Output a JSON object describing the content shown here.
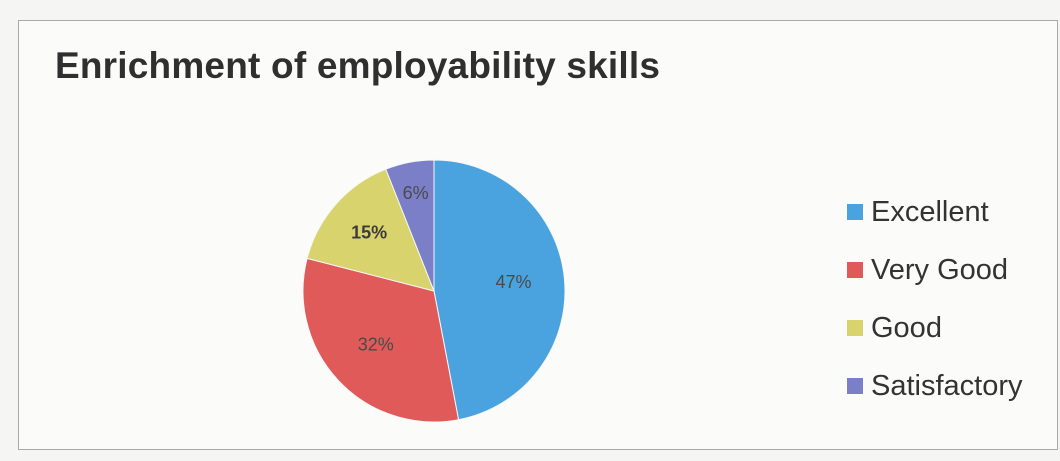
{
  "chart_data": {
    "type": "pie",
    "title": "Enrichment of employability skills",
    "categories": [
      "Excellent",
      "Very Good",
      "Good",
      "Satisfactory"
    ],
    "values": [
      47,
      32,
      15,
      6
    ],
    "labels": [
      "47%",
      "32%",
      "15%",
      "6%"
    ],
    "colors": [
      "#4aa3df",
      "#e05a5a",
      "#d8d36d",
      "#7b7fc7"
    ],
    "legend_position": "right"
  }
}
